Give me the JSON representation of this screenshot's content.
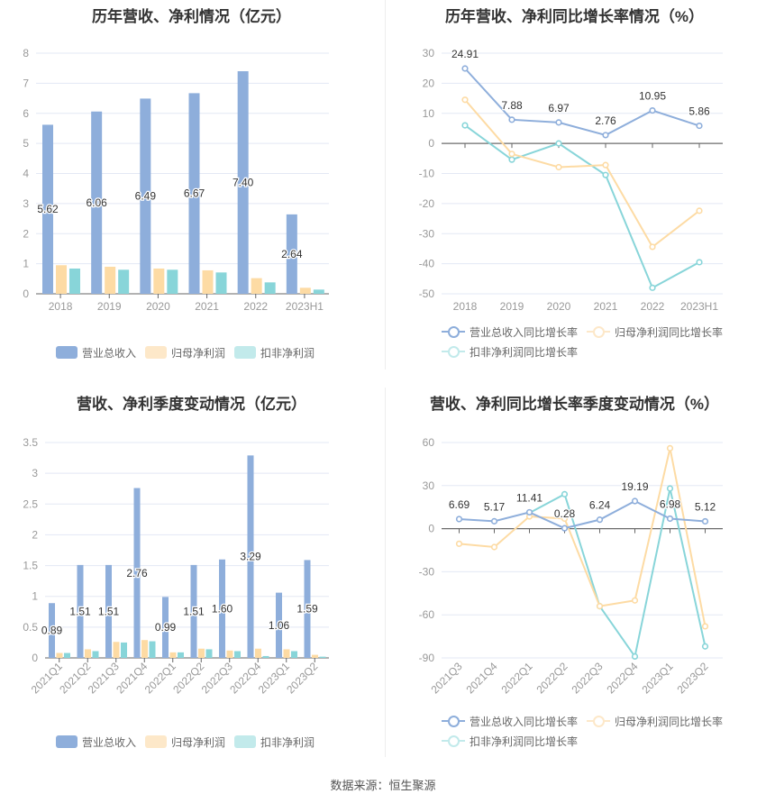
{
  "source": "数据来源：恒生聚源",
  "colors": {
    "revenue": "#8eaedb",
    "parent": "#fddba4",
    "deducted": "#88d5d9",
    "grid": "#e3e8f4",
    "axis": "#666"
  },
  "chart_data": [
    {
      "type": "bar",
      "title": "历年营收、净利情况（亿元）",
      "categories": [
        "2018",
        "2019",
        "2020",
        "2021",
        "2022",
        "2023H1"
      ],
      "ylim": [
        0,
        8
      ],
      "yticks": [
        0,
        1,
        2,
        3,
        4,
        5,
        6,
        7,
        8
      ],
      "legend": [
        "营业总收入",
        "归母净利润",
        "扣非净利润"
      ],
      "series": [
        {
          "name": "营业总收入",
          "values": [
            5.62,
            6.06,
            6.49,
            6.67,
            7.4,
            2.64
          ],
          "labels": [
            "5.62",
            "6.06",
            "6.49",
            "6.67",
            "7.40",
            "2.64"
          ]
        },
        {
          "name": "归母净利润",
          "values": [
            0.95,
            0.9,
            0.84,
            0.78,
            0.52,
            0.2
          ]
        },
        {
          "name": "扣非净利润",
          "values": [
            0.84,
            0.8,
            0.8,
            0.71,
            0.38,
            0.14
          ]
        }
      ]
    },
    {
      "type": "line",
      "title": "历年营收、净利同比增长率情况（%）",
      "categories": [
        "2018",
        "2019",
        "2020",
        "2021",
        "2022",
        "2023H1"
      ],
      "ylim": [
        -50,
        30
      ],
      "yticks": [
        -50,
        -40,
        -30,
        -20,
        -10,
        0,
        10,
        20,
        30
      ],
      "legend": [
        "营业总收入同比增长率",
        "归母净利润同比增长率",
        "扣非净利润同比增长率"
      ],
      "series": [
        {
          "name": "营业总收入同比增长率",
          "values": [
            24.91,
            7.88,
            6.97,
            2.76,
            10.95,
            5.86
          ],
          "labels": [
            "24.91",
            "7.88",
            "6.97",
            "2.76",
            "10.95",
            "5.86"
          ]
        },
        {
          "name": "归母净利润同比增长率",
          "values": [
            14.5,
            -3.5,
            -7.9,
            -7.2,
            -34.4,
            -22.4
          ]
        },
        {
          "name": "扣非净利润同比增长率",
          "values": [
            6.0,
            -5.4,
            0.0,
            -10.5,
            -48.0,
            -39.5
          ]
        }
      ]
    },
    {
      "type": "bar",
      "title": "营收、净利季度变动情况（亿元）",
      "categories": [
        "2021Q1",
        "2021Q2",
        "2021Q3",
        "2021Q4",
        "2022Q1",
        "2022Q2",
        "2022Q3",
        "2022Q4",
        "2023Q1",
        "2023Q2"
      ],
      "ylim": [
        0,
        3.5
      ],
      "yticks": [
        0,
        0.5,
        1,
        1.5,
        2,
        2.5,
        3,
        3.5
      ],
      "legend": [
        "营业总收入",
        "归母净利润",
        "扣非净利润"
      ],
      "series": [
        {
          "name": "营业总收入",
          "values": [
            0.89,
            1.51,
            1.51,
            2.76,
            0.99,
            1.51,
            1.6,
            3.29,
            1.06,
            1.59
          ],
          "labels": [
            "0.89",
            "1.51",
            "1.51",
            "2.76",
            "0.99",
            "1.51",
            "1.60",
            "3.29",
            "1.06",
            "1.59"
          ]
        },
        {
          "name": "归母净利润",
          "values": [
            0.08,
            0.14,
            0.26,
            0.29,
            0.09,
            0.15,
            0.12,
            0.15,
            0.14,
            0.05
          ]
        },
        {
          "name": "扣非净利润",
          "values": [
            0.08,
            0.11,
            0.25,
            0.27,
            0.09,
            0.14,
            0.11,
            0.03,
            0.11,
            0.02
          ]
        }
      ]
    },
    {
      "type": "line",
      "title": "营收、净利同比增长率季度变动情况（%）",
      "categories": [
        "2021Q3",
        "2021Q4",
        "2022Q1",
        "2022Q2",
        "2022Q3",
        "2022Q4",
        "2023Q1",
        "2023Q2"
      ],
      "ylim": [
        -90,
        60
      ],
      "yticks": [
        -90,
        -60,
        -30,
        0,
        30,
        60
      ],
      "legend": [
        "营业总收入同比增长率",
        "归母净利润同比增长率",
        "扣非净利润同比增长率"
      ],
      "series": [
        {
          "name": "营业总收入同比增长率",
          "values": [
            6.69,
            5.17,
            11.41,
            0.28,
            6.24,
            19.19,
            6.98,
            5.12
          ],
          "labels": [
            "6.69",
            "5.17",
            "11.41",
            "0.28",
            "6.24",
            "19.19",
            "6.98",
            "5.12"
          ]
        },
        {
          "name": "归母净利润同比增长率",
          "values": [
            -10.5,
            -12.8,
            8.5,
            7.0,
            -54.0,
            -50.0,
            56.0,
            -68.0
          ]
        },
        {
          "name": "扣非净利润同比增长率",
          "values": [
            null,
            null,
            11.0,
            24.0,
            -54.0,
            -89.0,
            28.0,
            -82.0
          ]
        }
      ]
    }
  ]
}
